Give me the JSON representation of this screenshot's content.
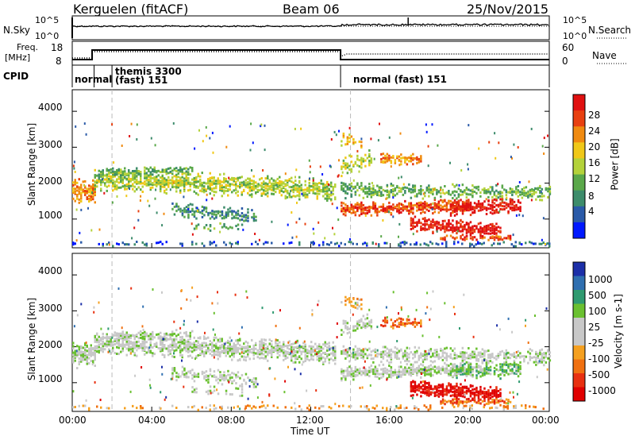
{
  "header": {
    "station": "Kerguelen (fitACF)",
    "beam": "Beam 06",
    "date": "25/Nov/2015"
  },
  "top_panel": {
    "nsky_label": "N.Sky",
    "nsearch_label": "N.Search",
    "freq_label_line1": "Freq.",
    "freq_label_line2": "[MHz]",
    "nave_label": "Nave",
    "cpid_label": "CPID",
    "left_ticks_top": [
      "10^5",
      "10^0"
    ],
    "right_ticks_top": [
      "10^5",
      "10^0"
    ],
    "left_ticks_freq": [
      "18",
      "8"
    ],
    "right_ticks_nave": [
      "60",
      "0"
    ],
    "cpid_segments": [
      {
        "label": "normal",
        "start_hour": 0,
        "end_hour": 2
      },
      {
        "label": "themis 3300",
        "sub": "(fast) 151",
        "start_hour": 2,
        "end_hour": 13.5
      },
      {
        "label": "normal (fast) 151",
        "start_hour": 13.5,
        "end_hour": 24
      }
    ]
  },
  "chart_data": [
    {
      "type": "heatmap",
      "name": "power",
      "ylabel": "Slant Range [km]",
      "yticks": [
        "1000",
        "2000",
        "3000",
        "4000"
      ],
      "ylim": [
        200,
        4600
      ],
      "colorbar_label": "Power [dB]",
      "colorbar_ticks": [
        "4",
        "8",
        "12",
        "16",
        "20",
        "24",
        "28"
      ],
      "colors": [
        "#0018ff",
        "#2a5aa8",
        "#3d8c6b",
        "#5aa84a",
        "#b4d23a",
        "#f0c818",
        "#f08a10",
        "#e84010",
        "#e01010"
      ]
    },
    {
      "type": "heatmap",
      "name": "velocity",
      "ylabel": "Slant Range [km]",
      "yticks": [
        "1000",
        "2000",
        "3000",
        "4000"
      ],
      "ylim": [
        200,
        4600
      ],
      "colorbar_label": "Velocity [m s-1]",
      "colorbar_ticks": [
        "1000",
        "500",
        "100",
        "25",
        "-25",
        "-100",
        "-500",
        "-1000"
      ],
      "colors": [
        "#1c2fa8",
        "#2f6fb0",
        "#2f9a70",
        "#6ac030",
        "#c8c8c8",
        "#c8c8c8",
        "#f5a020",
        "#f07010",
        "#e83010",
        "#e00000"
      ]
    }
  ],
  "xaxis": {
    "label": "Time UT",
    "ticks": [
      "00:00",
      "04:00",
      "08:00",
      "12:00",
      "16:00",
      "20:00",
      "00:00"
    ]
  }
}
